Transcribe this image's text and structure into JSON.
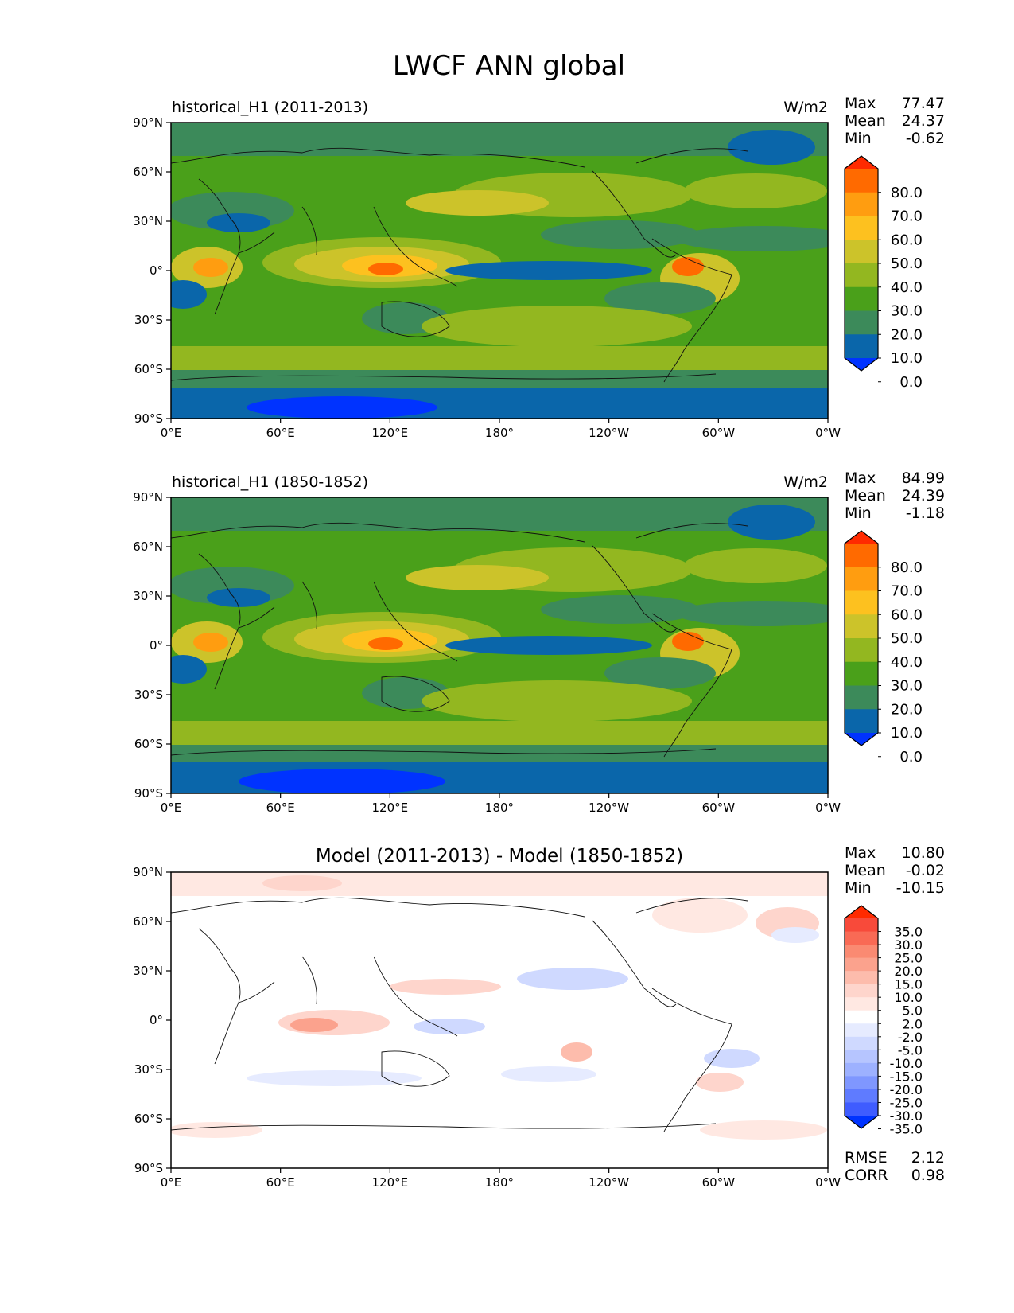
{
  "figure_title": "LWCF ANN global",
  "chart_data": [
    {
      "type": "heatmap",
      "title_left": "historical_H1 (2011-2013)",
      "units": "W/m2",
      "stats": [
        {
          "label": "Max",
          "value": "77.47"
        },
        {
          "label": "Mean",
          "value": "24.37"
        },
        {
          "label": "Min",
          "value": "-0.62"
        }
      ],
      "lat_ticks": [
        "90°N",
        "60°N",
        "30°N",
        "0°",
        "30°S",
        "60°S",
        "90°S"
      ],
      "lon_ticks": [
        "0°E",
        "60°E",
        "120°E",
        "180°",
        "120°W",
        "60°W",
        "0°W"
      ],
      "xlim": [
        0,
        360
      ],
      "ylim": [
        -90,
        90
      ],
      "colorbar_levels": [
        "80.0",
        "70.0",
        "60.0",
        "50.0",
        "40.0",
        "30.0",
        "20.0",
        "10.0",
        "0.0"
      ],
      "colorbar_colors": [
        "#ff2a00",
        "#ff6a00",
        "#ff9d10",
        "#fdc11f",
        "#ccc32a",
        "#93b720",
        "#4aa01a",
        "#3c8a5a",
        "#0a66aa",
        "#0033ff"
      ],
      "field": [
        {
          "lat": 75,
          "value": 20
        },
        {
          "lat": 50,
          "value": 30
        },
        {
          "lat": 30,
          "value": 25
        },
        {
          "lat": 0,
          "value": 40
        },
        {
          "lat": -30,
          "value": 35
        },
        {
          "lat": -60,
          "value": 30
        },
        {
          "lat": -80,
          "value": 10
        }
      ]
    },
    {
      "type": "heatmap",
      "title_left": "historical_H1 (1850-1852)",
      "units": "W/m2",
      "stats": [
        {
          "label": "Max",
          "value": "84.99"
        },
        {
          "label": "Mean",
          "value": "24.39"
        },
        {
          "label": "Min",
          "value": "-1.18"
        }
      ],
      "lat_ticks": [
        "90°N",
        "60°N",
        "30°N",
        "0°",
        "30°S",
        "60°S",
        "90°S"
      ],
      "lon_ticks": [
        "0°E",
        "60°E",
        "120°E",
        "180°",
        "120°W",
        "60°W",
        "0°W"
      ],
      "xlim": [
        0,
        360
      ],
      "ylim": [
        -90,
        90
      ],
      "colorbar_levels": [
        "80.0",
        "70.0",
        "60.0",
        "50.0",
        "40.0",
        "30.0",
        "20.0",
        "10.0",
        "0.0"
      ],
      "colorbar_colors": [
        "#ff2a00",
        "#ff6a00",
        "#ff9d10",
        "#fdc11f",
        "#ccc32a",
        "#93b720",
        "#4aa01a",
        "#3c8a5a",
        "#0a66aa",
        "#0033ff"
      ],
      "field": [
        {
          "lat": 75,
          "value": 20
        },
        {
          "lat": 50,
          "value": 30
        },
        {
          "lat": 30,
          "value": 25
        },
        {
          "lat": 0,
          "value": 40
        },
        {
          "lat": -30,
          "value": 35
        },
        {
          "lat": -60,
          "value": 30
        },
        {
          "lat": -80,
          "value": 5
        }
      ]
    },
    {
      "type": "heatmap",
      "title_center": "Model (2011-2013) - Model (1850-1852)",
      "stats": [
        {
          "label": "Max",
          "value": "10.80"
        },
        {
          "label": "Mean",
          "value": "-0.02"
        },
        {
          "label": "Min",
          "value": "-10.15"
        }
      ],
      "metrics": [
        {
          "label": "RMSE",
          "value": "2.12"
        },
        {
          "label": "CORR",
          "value": "0.98"
        }
      ],
      "lat_ticks": [
        "90°N",
        "60°N",
        "30°N",
        "0°",
        "30°S",
        "60°S",
        "90°S"
      ],
      "lon_ticks": [
        "0°E",
        "60°E",
        "120°E",
        "180°",
        "120°W",
        "60°W",
        "0°W"
      ],
      "xlim": [
        0,
        360
      ],
      "ylim": [
        -90,
        90
      ],
      "colorbar_levels": [
        "35.0",
        "30.0",
        "25.0",
        "20.0",
        "15.0",
        "10.0",
        "5.0",
        "2.0",
        "-2.0",
        "-5.0",
        "-10.0",
        "-15.0",
        "-20.0",
        "-25.0",
        "-30.0",
        "-35.0"
      ],
      "colorbar_colors": [
        "#ff2a00",
        "#f84a3a",
        "#f96a55",
        "#fa8a72",
        "#fba28d",
        "#fdbcac",
        "#fed5cc",
        "#ffe8e2",
        "#ffffff",
        "#e6ebff",
        "#cfd9ff",
        "#b6c5ff",
        "#9db1ff",
        "#7f97ff",
        "#5f7bff",
        "#3f5cff",
        "#0033ff"
      ],
      "field": [
        {
          "lat": 80,
          "value": 3
        },
        {
          "lat": 10,
          "value": 2
        },
        {
          "lat": 0,
          "value": -3
        },
        {
          "lat": -65,
          "value": 3
        }
      ]
    }
  ]
}
